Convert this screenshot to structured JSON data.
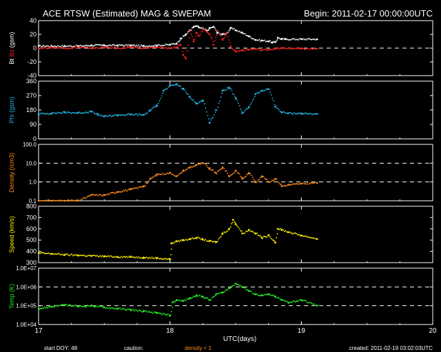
{
  "header": {
    "title": "ACE RTSW (Estimated) MAG & SWEPAM",
    "begin": "Begin: 2011-02-17 00:00:00UTC"
  },
  "footer": {
    "start_doy": "start DOY:  48",
    "caution": "caution:",
    "density_note": "density < 1",
    "created": "created: 2011-02-19 03:02:03UTC"
  },
  "colors": {
    "background": "#000000",
    "frame": "#ffffff",
    "bt": "#ffffff",
    "bz": "#ff2020",
    "phi": "#22b4e6",
    "density": "#ff8c1a",
    "speed": "#ffee00",
    "temp": "#22ee22"
  },
  "chart_data": [
    {
      "type": "scatter",
      "panel": "mag",
      "ylabel": [
        "Bt",
        "Bz",
        "(gsm)"
      ],
      "ylim": [
        -40,
        40
      ],
      "yticks": [
        "40",
        "20",
        "0",
        "-20",
        "-40"
      ],
      "reference_lines": [
        0
      ],
      "series": [
        {
          "name": "Bt",
          "color": "#ffffff",
          "x": [
            17.0,
            17.1,
            17.2,
            17.3,
            17.4,
            17.5,
            17.6,
            17.7,
            17.8,
            17.9,
            18.0,
            18.05,
            18.08,
            18.12,
            18.15,
            18.18,
            18.2,
            18.22,
            18.25,
            18.28,
            18.3,
            18.33,
            18.36,
            18.4,
            18.43,
            18.46,
            18.5,
            18.55,
            18.6,
            18.65,
            18.7,
            18.75,
            18.78,
            18.8,
            18.82,
            18.85,
            18.88,
            19.0,
            19.12
          ],
          "y": [
            3,
            3,
            3,
            3,
            4,
            4,
            4,
            4,
            3,
            4,
            5,
            7,
            14,
            20,
            26,
            31,
            32,
            30,
            28,
            25,
            29,
            31,
            22,
            20,
            22,
            29,
            26,
            22,
            17,
            12,
            11,
            10,
            8,
            9,
            15,
            13,
            13,
            13,
            13
          ]
        },
        {
          "name": "Bz",
          "color": "#ff2020",
          "x": [
            17.0,
            17.1,
            17.2,
            17.3,
            17.4,
            17.5,
            17.6,
            17.7,
            17.8,
            17.9,
            18.0,
            18.05,
            18.08,
            18.1,
            18.12,
            18.15,
            18.18,
            18.2,
            18.22,
            18.25,
            18.28,
            18.3,
            18.33,
            18.36,
            18.4,
            18.43,
            18.46,
            18.5,
            18.55,
            18.6,
            18.65,
            18.7,
            18.75,
            18.8,
            18.85,
            19.0,
            19.12
          ],
          "y": [
            0,
            1,
            0,
            1,
            0,
            1,
            0,
            1,
            0,
            1,
            0,
            1,
            5,
            -10,
            -15,
            25,
            10,
            22,
            18,
            28,
            24,
            20,
            5,
            25,
            12,
            22,
            2,
            -5,
            -3,
            -2,
            -1,
            -3,
            -2,
            -1,
            0,
            -1,
            -1
          ]
        }
      ]
    },
    {
      "type": "scatter",
      "panel": "phi",
      "ylabel": [
        "Phi (gsm)"
      ],
      "ylim": [
        0,
        360
      ],
      "yticks": [
        "360",
        "270",
        "180",
        "90",
        "0"
      ],
      "series": [
        {
          "name": "Phi",
          "color": "#22b4e6",
          "x": [
            17.0,
            17.1,
            17.2,
            17.3,
            17.4,
            17.45,
            17.5,
            17.6,
            17.7,
            17.8,
            17.85,
            17.9,
            17.95,
            18.0,
            18.05,
            18.1,
            18.15,
            18.2,
            18.25,
            18.3,
            18.35,
            18.4,
            18.45,
            18.5,
            18.55,
            18.6,
            18.65,
            18.7,
            18.75,
            18.8,
            18.85,
            18.9,
            19.0,
            19.12
          ],
          "y": [
            155,
            160,
            165,
            162,
            170,
            150,
            140,
            148,
            152,
            150,
            180,
            210,
            300,
            330,
            340,
            310,
            260,
            220,
            240,
            100,
            180,
            300,
            320,
            250,
            160,
            200,
            280,
            300,
            310,
            200,
            165,
            160,
            158,
            155
          ]
        }
      ]
    },
    {
      "type": "scatter",
      "panel": "density",
      "ylabel": [
        "Density (/cm3)"
      ],
      "yscale": "log",
      "ylim": [
        0.1,
        100
      ],
      "yticks": [
        "100.0",
        "10.0",
        "1.0",
        "0.1"
      ],
      "reference_lines": [
        1,
        10
      ],
      "series": [
        {
          "name": "Density",
          "color": "#ff8c1a",
          "x": [
            17.0,
            17.1,
            17.2,
            17.3,
            17.4,
            17.5,
            17.6,
            17.7,
            17.8,
            17.85,
            17.9,
            18.0,
            18.05,
            18.1,
            18.15,
            18.2,
            18.25,
            18.3,
            18.35,
            18.4,
            18.45,
            18.5,
            18.55,
            18.6,
            18.65,
            18.7,
            18.75,
            18.8,
            18.85,
            18.9,
            19.0,
            19.12
          ],
          "y": [
            0.1,
            0.1,
            0.1,
            0.1,
            0.2,
            0.2,
            0.3,
            0.4,
            0.6,
            1.5,
            2.5,
            3.0,
            2.0,
            4.0,
            6.0,
            8.0,
            10.0,
            5.0,
            3.0,
            6.0,
            2.0,
            4.0,
            1.5,
            3.0,
            1.0,
            2.0,
            1.0,
            1.5,
            0.6,
            0.7,
            0.8,
            0.9
          ]
        }
      ]
    },
    {
      "type": "scatter",
      "panel": "speed",
      "ylabel": [
        "Speed (km/s)"
      ],
      "ylim": [
        300,
        800
      ],
      "yticks": [
        "800",
        "700",
        "600",
        "500",
        "400",
        "300"
      ],
      "series": [
        {
          "name": "Speed",
          "color": "#ffee00",
          "x": [
            17.0,
            17.1,
            17.2,
            17.3,
            17.4,
            17.5,
            17.6,
            17.7,
            17.8,
            17.9,
            18.0,
            18.01,
            18.05,
            18.1,
            18.15,
            18.2,
            18.25,
            18.3,
            18.35,
            18.4,
            18.45,
            18.48,
            18.5,
            18.55,
            18.6,
            18.65,
            18.7,
            18.75,
            18.8,
            18.82,
            18.85,
            18.9,
            19.0,
            19.12
          ],
          "y": [
            385,
            378,
            370,
            365,
            360,
            355,
            352,
            350,
            345,
            340,
            330,
            470,
            490,
            500,
            510,
            520,
            505,
            490,
            480,
            560,
            600,
            680,
            640,
            560,
            590,
            560,
            520,
            540,
            480,
            600,
            590,
            570,
            540,
            510
          ]
        }
      ]
    },
    {
      "type": "scatter",
      "panel": "temp",
      "ylabel": [
        "Temp (K)"
      ],
      "yscale": "log",
      "ylim": [
        10000,
        10000000
      ],
      "yticks": [
        "1.0E+07",
        "1.0E+06",
        "1.0E+05",
        "1.0E+04"
      ],
      "reference_lines": [
        100000,
        1000000
      ],
      "x_ticks": [
        "17",
        "18",
        "19",
        "20"
      ],
      "xlim": [
        17,
        20
      ],
      "xlabel": "UTC(days)",
      "series": [
        {
          "name": "Temp",
          "color": "#22ee22",
          "x": [
            17.0,
            17.1,
            17.2,
            17.3,
            17.4,
            17.5,
            17.6,
            17.7,
            17.8,
            17.9,
            18.0,
            18.02,
            18.05,
            18.1,
            18.15,
            18.2,
            18.25,
            18.3,
            18.35,
            18.4,
            18.45,
            18.5,
            18.55,
            18.6,
            18.65,
            18.7,
            18.75,
            18.8,
            18.85,
            18.9,
            19.0,
            19.12
          ],
          "y": [
            70000,
            90000,
            110000,
            90000,
            100000,
            80000,
            70000,
            60000,
            50000,
            40000,
            30000,
            150000,
            200000,
            180000,
            250000,
            350000,
            300000,
            200000,
            400000,
            500000,
            900000,
            1500000,
            1000000,
            600000,
            400000,
            350000,
            400000,
            300000,
            200000,
            150000,
            200000,
            100000
          ]
        }
      ]
    }
  ]
}
